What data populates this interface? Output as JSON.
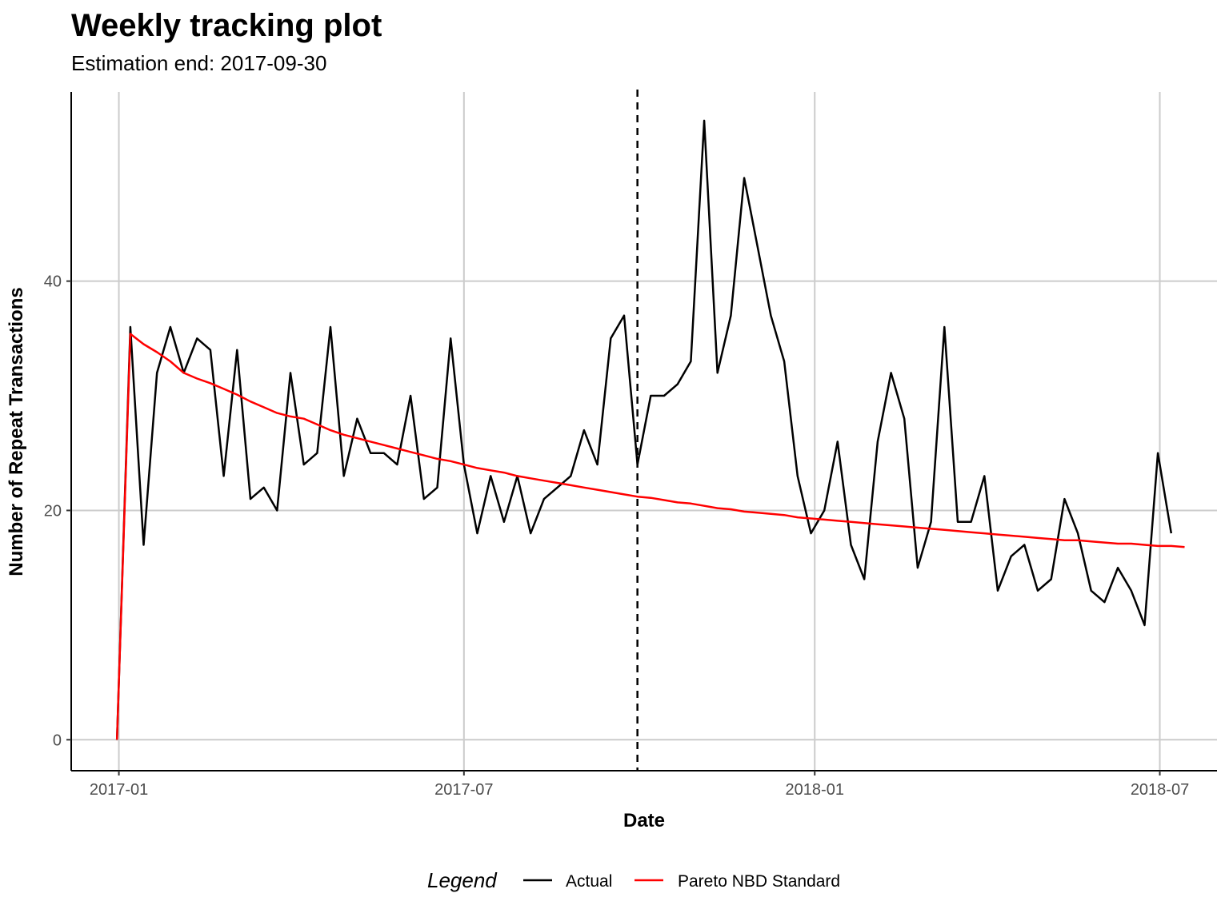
{
  "chart_data": {
    "type": "line",
    "title": "Weekly tracking plot",
    "subtitle": "Estimation end: 2017-09-30",
    "xlabel": "Date",
    "ylabel": "Number of Repeat Transactions",
    "x_ticks": [
      "2017-01",
      "2017-07",
      "2018-01",
      "2018-07"
    ],
    "x_tick_dates": [
      "2017-01-01",
      "2017-07-01",
      "2018-01-01",
      "2018-07-01"
    ],
    "xlim": [
      "2016-12-07",
      "2018-07-31"
    ],
    "y_ticks": [
      0,
      20,
      40
    ],
    "ylim": [
      -2.7,
      56.5
    ],
    "grid": true,
    "vline": {
      "date": "2017-09-30",
      "style": "dashed",
      "color": "#000000"
    },
    "legend": {
      "title": "Legend",
      "position": "bottom"
    },
    "x": [
      "2016-12-31",
      "2017-01-07",
      "2017-01-14",
      "2017-01-21",
      "2017-01-28",
      "2017-02-04",
      "2017-02-11",
      "2017-02-18",
      "2017-02-25",
      "2017-03-04",
      "2017-03-11",
      "2017-03-18",
      "2017-03-25",
      "2017-04-01",
      "2017-04-08",
      "2017-04-15",
      "2017-04-22",
      "2017-04-29",
      "2017-05-06",
      "2017-05-13",
      "2017-05-20",
      "2017-05-27",
      "2017-06-03",
      "2017-06-10",
      "2017-06-17",
      "2017-06-24",
      "2017-07-01",
      "2017-07-08",
      "2017-07-15",
      "2017-07-22",
      "2017-07-29",
      "2017-08-05",
      "2017-08-12",
      "2017-08-19",
      "2017-08-26",
      "2017-09-02",
      "2017-09-09",
      "2017-09-16",
      "2017-09-23",
      "2017-09-30",
      "2017-10-07",
      "2017-10-14",
      "2017-10-21",
      "2017-10-28",
      "2017-11-04",
      "2017-11-11",
      "2017-11-18",
      "2017-11-25",
      "2017-12-02",
      "2017-12-09",
      "2017-12-16",
      "2017-12-23",
      "2017-12-30",
      "2018-01-06",
      "2018-01-13",
      "2018-01-20",
      "2018-01-27",
      "2018-02-03",
      "2018-02-10",
      "2018-02-17",
      "2018-02-24",
      "2018-03-03",
      "2018-03-10",
      "2018-03-17",
      "2018-03-24",
      "2018-03-31",
      "2018-04-07",
      "2018-04-14",
      "2018-04-21",
      "2018-04-28",
      "2018-05-05",
      "2018-05-12",
      "2018-05-19",
      "2018-05-26",
      "2018-06-02",
      "2018-06-09",
      "2018-06-16",
      "2018-06-23",
      "2018-06-30",
      "2018-07-07",
      "2018-07-14"
    ],
    "series": [
      {
        "name": "Actual",
        "color": "#000000",
        "values": [
          0,
          36,
          17,
          32,
          36,
          32,
          35,
          34,
          23,
          34,
          21,
          22,
          20,
          32,
          24,
          25,
          36,
          23,
          28,
          25,
          25,
          24,
          30,
          21,
          22,
          35,
          24,
          18,
          23,
          19,
          23,
          18,
          21,
          22,
          23,
          27,
          24,
          35,
          37,
          24,
          30,
          30,
          31,
          33,
          54,
          32,
          37,
          49,
          43,
          37,
          33,
          23,
          18,
          20,
          26,
          17,
          14,
          26,
          32,
          28,
          15,
          19,
          36,
          19,
          19,
          23,
          13,
          16,
          17,
          13,
          14,
          21,
          18,
          13,
          12,
          15,
          13,
          10,
          25,
          18,
          null
        ]
      },
      {
        "name": "Pareto NBD Standard",
        "color": "#ff0000",
        "values": [
          0,
          35.4,
          34.5,
          33.8,
          33.0,
          32.0,
          31.5,
          31.1,
          30.6,
          30.1,
          29.5,
          29.0,
          28.5,
          28.2,
          28.0,
          27.5,
          27.0,
          26.6,
          26.3,
          26.0,
          25.7,
          25.4,
          25.1,
          24.8,
          24.5,
          24.3,
          24.0,
          23.7,
          23.5,
          23.3,
          23.0,
          22.8,
          22.6,
          22.4,
          22.2,
          22.0,
          21.8,
          21.6,
          21.4,
          21.2,
          21.1,
          20.9,
          20.7,
          20.6,
          20.4,
          20.2,
          20.1,
          19.9,
          19.8,
          19.7,
          19.6,
          19.4,
          19.3,
          19.2,
          19.1,
          19.0,
          18.9,
          18.8,
          18.7,
          18.6,
          18.5,
          18.4,
          18.3,
          18.2,
          18.1,
          18.0,
          17.9,
          17.8,
          17.7,
          17.6,
          17.5,
          17.4,
          17.4,
          17.3,
          17.2,
          17.1,
          17.1,
          17.0,
          16.9,
          16.9,
          16.8
        ]
      }
    ]
  }
}
